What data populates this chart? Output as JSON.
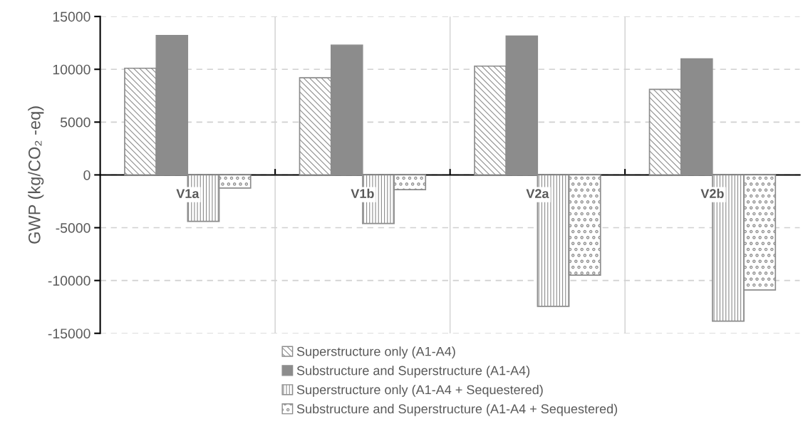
{
  "chart_data": {
    "type": "bar",
    "ylabel": "GWP (kg/CO₂ -eq)",
    "categories": [
      "V1a",
      "V1b",
      "V2a",
      "V2b"
    ],
    "series": [
      {
        "name": "Superstructure only (A1-A4)",
        "color": "#8c8c8c",
        "values": [
          10100,
          9200,
          10300,
          8100
        ]
      },
      {
        "name": "Substructure and Superstructure (A1-A4)",
        "color": "#8c8c8c",
        "values": [
          13200,
          12300,
          13150,
          11000
        ]
      },
      {
        "name": "Superstructure only (A1-A4 + Sequestered)",
        "color": "#8c8c8c",
        "values": [
          -4400,
          -4600,
          -12450,
          -13850
        ]
      },
      {
        "name": "Substructure and Superstructure (A1-A4 + Sequestered)",
        "color": "#8c8c8c",
        "values": [
          -1250,
          -1400,
          -9500,
          -10900
        ]
      }
    ],
    "ylim": [
      -15000,
      15000
    ],
    "yticks": [
      -15000,
      -10000,
      -5000,
      0,
      5000,
      10000,
      15000
    ],
    "grid": true,
    "legend": "bottom"
  }
}
